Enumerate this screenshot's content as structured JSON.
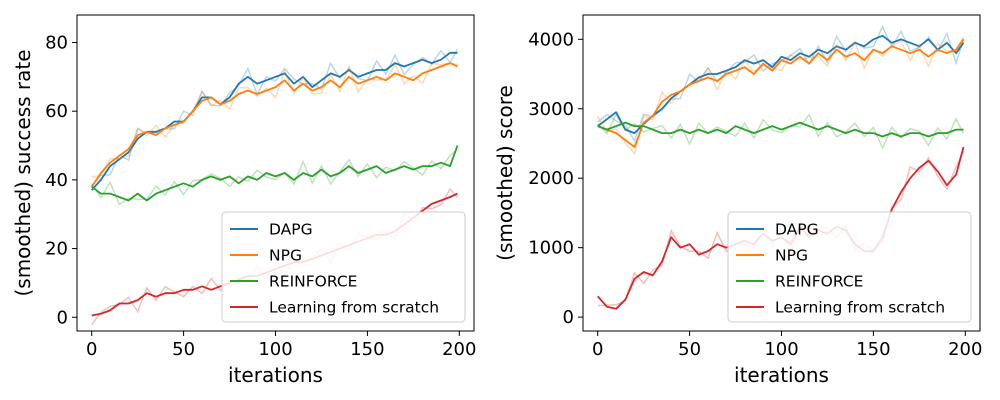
{
  "chart_data": [
    {
      "type": "line",
      "xlabel": "iterations",
      "ylabel": "(smoothed) success rate",
      "xlim": [
        -8,
        208
      ],
      "ylim": [
        -4,
        88
      ],
      "xticks": [
        0,
        50,
        100,
        150,
        200
      ],
      "yticks": [
        0,
        20,
        40,
        60,
        80
      ],
      "grid": false,
      "legend_position": "lower-right",
      "series": [
        {
          "name": "DAPG",
          "color": "#1f77b4",
          "x": [
            0,
            5,
            10,
            15,
            20,
            25,
            30,
            35,
            40,
            45,
            50,
            55,
            60,
            65,
            70,
            75,
            80,
            85,
            90,
            95,
            100,
            105,
            110,
            115,
            120,
            125,
            130,
            135,
            140,
            145,
            150,
            155,
            160,
            165,
            170,
            175,
            180,
            185,
            190,
            195,
            199
          ],
          "y": [
            37,
            40,
            44,
            46,
            48,
            52,
            54,
            54,
            55,
            57,
            57,
            60,
            64,
            64,
            62,
            64,
            68,
            70,
            68,
            69,
            70,
            71,
            68,
            70,
            67,
            69,
            71,
            70,
            72,
            70,
            71,
            72,
            72,
            74,
            73,
            74,
            75,
            74,
            75,
            77,
            77
          ]
        },
        {
          "name": "NPG",
          "color": "#ff7f0e",
          "x": [
            0,
            5,
            10,
            15,
            20,
            25,
            30,
            35,
            40,
            45,
            50,
            55,
            60,
            65,
            70,
            75,
            80,
            85,
            90,
            95,
            100,
            105,
            110,
            115,
            120,
            125,
            130,
            135,
            140,
            145,
            150,
            155,
            160,
            165,
            170,
            175,
            180,
            185,
            190,
            195,
            199
          ],
          "y": [
            38,
            42,
            45,
            47,
            49,
            53,
            54,
            53,
            55,
            56,
            57,
            60,
            63,
            64,
            62,
            63,
            65,
            66,
            65,
            66,
            67,
            69,
            66,
            68,
            66,
            67,
            69,
            67,
            70,
            68,
            69,
            70,
            69,
            71,
            70,
            69,
            71,
            72,
            73,
            74,
            73
          ]
        },
        {
          "name": "REINFORCE",
          "color": "#2ca02c",
          "x": [
            0,
            5,
            10,
            15,
            20,
            25,
            30,
            35,
            40,
            45,
            50,
            55,
            60,
            65,
            70,
            75,
            80,
            85,
            90,
            95,
            100,
            105,
            110,
            115,
            120,
            125,
            130,
            135,
            140,
            145,
            150,
            155,
            160,
            165,
            170,
            175,
            180,
            185,
            190,
            195,
            199
          ],
          "y": [
            38,
            36,
            36,
            35,
            34,
            36,
            34,
            36,
            37,
            38,
            39,
            38,
            40,
            41,
            40,
            41,
            39,
            41,
            40,
            42,
            41,
            42,
            40,
            42,
            41,
            43,
            41,
            42,
            44,
            42,
            43,
            44,
            42,
            43,
            44,
            43,
            44,
            44,
            45,
            44,
            50
          ]
        },
        {
          "name": "Learning from scratch",
          "color": "#d62728",
          "x": [
            0,
            5,
            10,
            15,
            20,
            25,
            30,
            35,
            40,
            45,
            50,
            55,
            60,
            65,
            70,
            75,
            80,
            85,
            90,
            95,
            100,
            105,
            110,
            115,
            120,
            125,
            130,
            135,
            140,
            145,
            150,
            155,
            160,
            165,
            170,
            175,
            180,
            185,
            190,
            195,
            199
          ],
          "y": [
            0.5,
            1,
            2,
            4,
            4,
            5,
            7,
            6,
            7,
            7,
            8,
            8,
            9,
            8,
            9,
            10,
            11,
            12,
            12,
            13,
            14,
            15,
            16,
            16,
            17,
            18,
            19,
            20,
            21,
            22,
            23,
            24,
            24,
            25,
            27,
            29,
            31,
            33,
            34,
            35,
            36
          ]
        }
      ]
    },
    {
      "type": "line",
      "xlabel": "iterations",
      "ylabel": "(smoothed) score",
      "xlim": [
        -8,
        208
      ],
      "ylim": [
        -200,
        4350
      ],
      "xticks": [
        0,
        50,
        100,
        150,
        200
      ],
      "yticks": [
        0,
        1000,
        2000,
        3000,
        4000
      ],
      "grid": false,
      "legend_position": "lower-right",
      "series": [
        {
          "name": "DAPG",
          "color": "#1f77b4",
          "x": [
            0,
            5,
            10,
            15,
            20,
            25,
            30,
            35,
            40,
            45,
            50,
            55,
            60,
            65,
            70,
            75,
            80,
            85,
            90,
            95,
            100,
            105,
            110,
            115,
            120,
            125,
            130,
            135,
            140,
            145,
            150,
            155,
            160,
            165,
            170,
            175,
            180,
            185,
            190,
            195,
            199
          ],
          "y": [
            2750,
            2850,
            2950,
            2700,
            2650,
            2780,
            2900,
            3000,
            3150,
            3250,
            3350,
            3450,
            3500,
            3500,
            3550,
            3600,
            3700,
            3650,
            3700,
            3600,
            3750,
            3700,
            3800,
            3750,
            3850,
            3800,
            3900,
            3850,
            3950,
            3900,
            4000,
            4050,
            3950,
            4000,
            3950,
            3900,
            4000,
            3850,
            3950,
            3800,
            3950
          ]
        },
        {
          "name": "NPG",
          "color": "#ff7f0e",
          "x": [
            0,
            5,
            10,
            15,
            20,
            25,
            30,
            35,
            40,
            45,
            50,
            55,
            60,
            65,
            70,
            75,
            80,
            85,
            90,
            95,
            100,
            105,
            110,
            115,
            120,
            125,
            130,
            135,
            140,
            145,
            150,
            155,
            160,
            165,
            170,
            175,
            180,
            185,
            190,
            195,
            199
          ],
          "y": [
            2750,
            2700,
            2650,
            2550,
            2450,
            2800,
            2900,
            3100,
            3200,
            3250,
            3350,
            3400,
            3450,
            3400,
            3500,
            3550,
            3600,
            3500,
            3650,
            3550,
            3700,
            3650,
            3750,
            3650,
            3800,
            3700,
            3850,
            3750,
            3800,
            3700,
            3850,
            3800,
            3900,
            3850,
            3800,
            3850,
            3750,
            3850,
            3800,
            3850,
            4000
          ]
        },
        {
          "name": "REINFORCE",
          "color": "#2ca02c",
          "x": [
            0,
            5,
            10,
            15,
            20,
            25,
            30,
            35,
            40,
            45,
            50,
            55,
            60,
            65,
            70,
            75,
            80,
            85,
            90,
            95,
            100,
            105,
            110,
            115,
            120,
            125,
            130,
            135,
            140,
            145,
            150,
            155,
            160,
            165,
            170,
            175,
            180,
            185,
            190,
            195,
            199
          ],
          "y": [
            2750,
            2700,
            2750,
            2800,
            2750,
            2750,
            2700,
            2650,
            2650,
            2700,
            2650,
            2700,
            2650,
            2700,
            2650,
            2750,
            2700,
            2650,
            2700,
            2750,
            2700,
            2750,
            2800,
            2750,
            2700,
            2750,
            2700,
            2650,
            2700,
            2650,
            2650,
            2600,
            2650,
            2600,
            2650,
            2650,
            2600,
            2650,
            2650,
            2700,
            2700
          ]
        },
        {
          "name": "Learning from scratch",
          "color": "#d62728",
          "x": [
            0,
            5,
            10,
            15,
            20,
            25,
            30,
            35,
            40,
            45,
            50,
            55,
            60,
            65,
            70,
            75,
            80,
            85,
            90,
            95,
            100,
            105,
            110,
            115,
            120,
            125,
            130,
            135,
            140,
            145,
            150,
            155,
            160,
            165,
            170,
            175,
            180,
            185,
            190,
            195,
            199
          ],
          "y": [
            300,
            150,
            120,
            250,
            550,
            650,
            600,
            800,
            1150,
            1000,
            1050,
            900,
            950,
            1050,
            1000,
            1050,
            1100,
            1050,
            1200,
            1100,
            1150,
            1050,
            1300,
            1150,
            1250,
            1200,
            1300,
            1250,
            1050,
            950,
            950,
            1150,
            1550,
            1800,
            2000,
            2150,
            2250,
            2100,
            1900,
            2050,
            2450
          ]
        }
      ]
    }
  ]
}
